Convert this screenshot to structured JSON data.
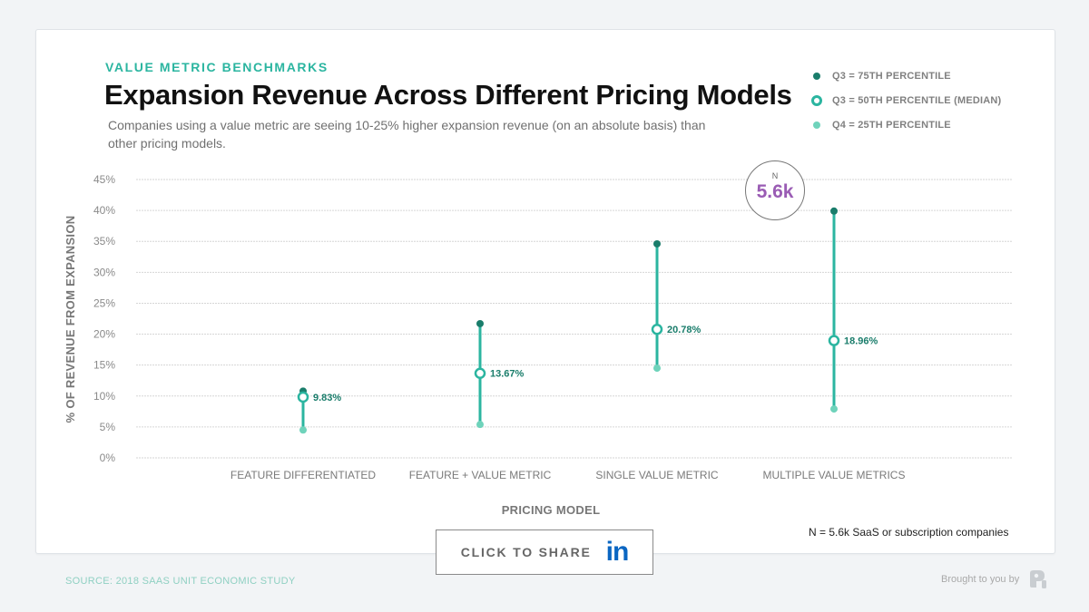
{
  "header": {
    "eyebrow": "VALUE METRIC BENCHMARKS",
    "title": "Expansion Revenue Across Different Pricing Models",
    "subtitle": "Companies using a value metric are seeing 10-25% higher expansion revenue (on an absolute basis) than other pricing models."
  },
  "legend": {
    "items": [
      {
        "label": "Q3 = 75TH PERCENTILE",
        "marker": "filled-dark-dot"
      },
      {
        "label": "Q3 = 50TH PERCENTILE (MEDIAN)",
        "marker": "hollow-ring"
      },
      {
        "label": "Q4 = 25TH PERCENTILE",
        "marker": "filled-light-dot"
      }
    ]
  },
  "badge": {
    "letter": "N",
    "value": "5.6k"
  },
  "note": "N = 5.6k SaaS or subscription companies",
  "share": {
    "label": "CLICK TO SHARE",
    "icon": "linkedin-icon",
    "icon_text": "in"
  },
  "footer": {
    "source": "SOURCE: 2018 SAAS UNIT ECONOMIC STUDY",
    "brought_by": "Brought to you by",
    "brand_icon": "profitwell-logo-icon"
  },
  "colors": {
    "accent": "#2bb5a0",
    "q3_dot": "#1a7d6b",
    "q1_dot": "#6fd3bb",
    "badge_value": "#9a5cb4",
    "linkedin": "#0a66c2"
  },
  "chart_data": {
    "type": "range-dot",
    "title": "Expansion Revenue Across Different Pricing Models",
    "xlabel": "PRICING MODEL",
    "ylabel": "% OF REVENUE FROM EXPANSION",
    "ylim": [
      0,
      45
    ],
    "yticks": [
      0,
      5,
      10,
      15,
      20,
      25,
      30,
      35,
      40,
      45
    ],
    "ytick_labels": [
      "0%",
      "5%",
      "10%",
      "15%",
      "20%",
      "25%",
      "30%",
      "35%",
      "40%",
      "45%"
    ],
    "grid": true,
    "legend_position": "top-right",
    "categories": [
      "FEATURE DIFFERENTIATED",
      "FEATURE + VALUE METRIC",
      "SINGLE VALUE METRIC",
      "MULTIPLE VALUE METRICS"
    ],
    "series": [
      {
        "name": "75th percentile",
        "values": [
          10.8,
          21.7,
          34.6,
          39.9
        ]
      },
      {
        "name": "Median",
        "values": [
          9.83,
          13.67,
          20.78,
          18.96
        ],
        "labels": [
          "9.83%",
          "13.67%",
          "20.78%",
          "18.96%"
        ]
      },
      {
        "name": "25th percentile",
        "values": [
          4.5,
          5.4,
          14.5,
          7.9
        ]
      }
    ]
  }
}
